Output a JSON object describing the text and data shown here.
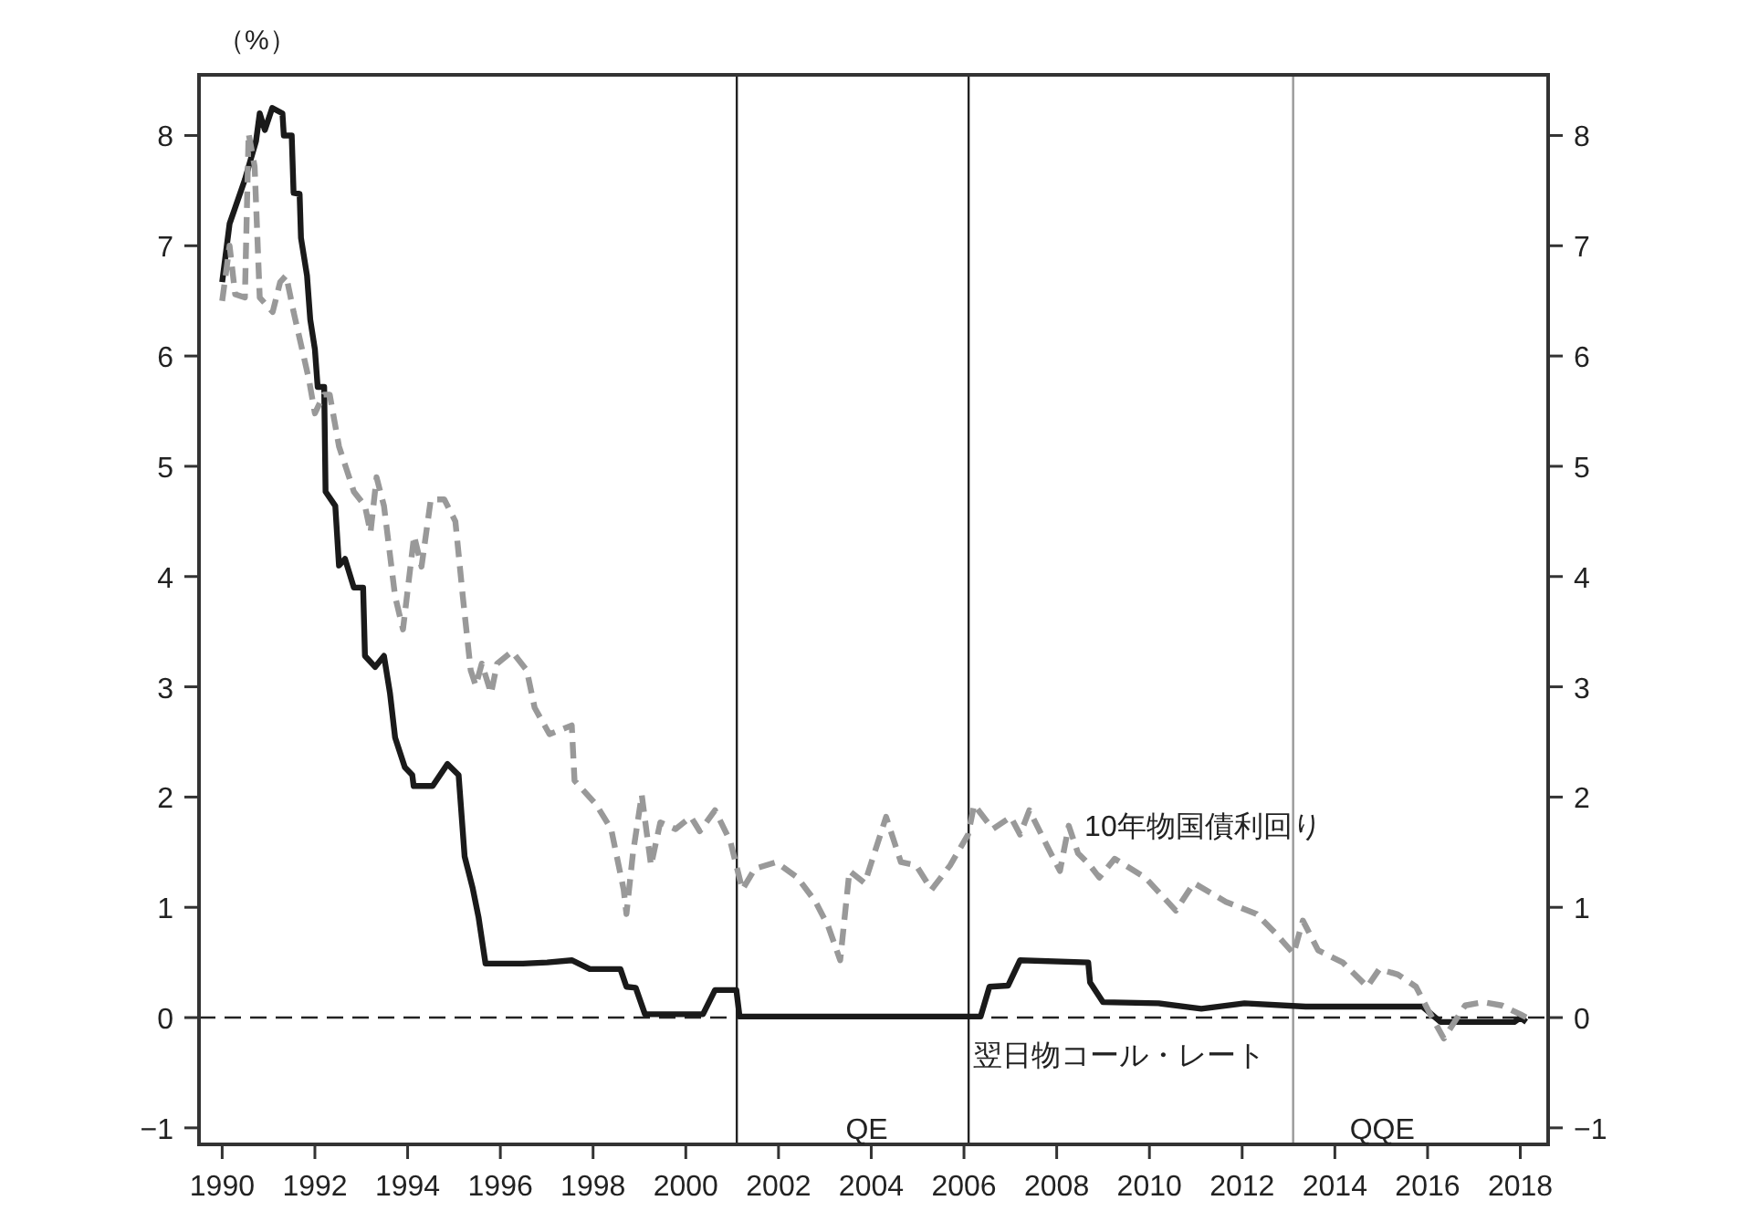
{
  "chart_data": {
    "type": "line",
    "ylabel": "（%）",
    "annotations": [
      "QE",
      "QQE"
    ],
    "series": [
      {
        "name": "翌日物コール・レート",
        "color": "#1a1a1a",
        "line_style": "solid",
        "x": [
          1990.0,
          1990.16,
          1990.49,
          1990.73,
          1990.81,
          1990.92,
          1991.08,
          1991.3,
          1991.33,
          1991.5,
          1991.54,
          1991.67,
          1991.7,
          1991.83,
          1991.9,
          1992.0,
          1992.06,
          1992.2,
          1992.23,
          1992.44,
          1992.52,
          1992.65,
          1992.84,
          1993.04,
          1993.08,
          1993.3,
          1993.49,
          1993.62,
          1993.73,
          1993.94,
          1994.1,
          1994.13,
          1994.54,
          1994.86,
          1995.1,
          1995.23,
          1995.4,
          1995.53,
          1995.68,
          1996.49,
          1997.01,
          1997.54,
          1997.93,
          1998.59,
          1998.72,
          1998.92,
          1999.12,
          2000.37,
          2000.63,
          2001.09,
          2001.16,
          2006.36,
          2006.55,
          2006.95,
          2007.21,
          2008.68,
          2008.72,
          2009.0,
          2010.2,
          2011.12,
          2012.05,
          2013.37,
          2015.89,
          2016.28,
          2017.87,
          2018.0,
          2018.13
        ],
        "values": [
          6.67,
          7.2,
          7.6,
          7.95,
          8.2,
          8.05,
          8.25,
          8.2,
          8.0,
          8.0,
          7.48,
          7.47,
          7.07,
          6.73,
          6.33,
          6.06,
          5.72,
          5.72,
          4.77,
          4.64,
          4.1,
          4.16,
          3.9,
          3.9,
          3.28,
          3.18,
          3.28,
          2.94,
          2.54,
          2.27,
          2.2,
          2.1,
          2.1,
          2.3,
          2.2,
          1.46,
          1.18,
          0.91,
          0.49,
          0.49,
          0.5,
          0.52,
          0.44,
          0.44,
          0.28,
          0.27,
          0.03,
          0.03,
          0.25,
          0.25,
          0.01,
          0.01,
          0.28,
          0.29,
          0.52,
          0.5,
          0.32,
          0.14,
          0.13,
          0.08,
          0.13,
          0.1,
          0.1,
          -0.04,
          -0.04,
          0.0,
          -0.04
        ]
      },
      {
        "name": "10年物国債利回り",
        "color": "#999999",
        "line_style": "dashed",
        "x": [
          1990.0,
          1990.16,
          1990.28,
          1990.49,
          1990.57,
          1990.7,
          1990.81,
          1991.09,
          1991.25,
          1991.38,
          1991.54,
          1991.87,
          1992.0,
          1992.19,
          1992.32,
          1992.52,
          1992.84,
          1993.08,
          1993.2,
          1993.33,
          1993.49,
          1993.73,
          1993.9,
          1994.14,
          1994.3,
          1994.5,
          1994.79,
          1995.03,
          1995.19,
          1995.36,
          1995.47,
          1995.6,
          1995.8,
          1995.93,
          1996.25,
          1996.57,
          1996.74,
          1997.06,
          1997.54,
          1997.6,
          1998.07,
          1998.39,
          1998.66,
          1998.72,
          1998.86,
          1999.05,
          1999.25,
          1999.45,
          1999.78,
          2000.11,
          2000.3,
          2000.63,
          2000.96,
          2001.22,
          2001.49,
          2001.95,
          2002.41,
          2002.8,
          2003.07,
          2003.33,
          2003.53,
          2003.86,
          2004.32,
          2004.64,
          2004.97,
          2005.3,
          2005.7,
          2006.09,
          2006.22,
          2006.62,
          2007.01,
          2007.21,
          2007.41,
          2007.8,
          2008.07,
          2008.26,
          2008.46,
          2008.72,
          2008.92,
          2009.25,
          2009.91,
          2010.57,
          2010.96,
          2011.65,
          2012.31,
          2012.71,
          2013.11,
          2013.31,
          2013.64,
          2014.17,
          2014.7,
          2014.96,
          2015.36,
          2015.75,
          2016.02,
          2016.35,
          2016.81,
          2017.21,
          2017.6,
          2018.0,
          2018.27
        ],
        "values": [
          6.5,
          7.0,
          6.56,
          6.53,
          8.02,
          7.72,
          6.53,
          6.4,
          6.67,
          6.73,
          6.4,
          5.79,
          5.48,
          5.65,
          5.65,
          5.18,
          4.77,
          4.64,
          4.4,
          4.9,
          4.64,
          3.82,
          3.52,
          4.37,
          4.09,
          4.7,
          4.7,
          4.5,
          3.82,
          3.15,
          3.01,
          3.21,
          2.94,
          3.21,
          3.32,
          3.15,
          2.81,
          2.57,
          2.65,
          2.15,
          1.93,
          1.71,
          1.16,
          0.94,
          1.49,
          2.02,
          1.38,
          1.77,
          1.71,
          1.82,
          1.69,
          1.88,
          1.6,
          1.16,
          1.35,
          1.41,
          1.27,
          1.05,
          0.83,
          0.52,
          1.33,
          1.22,
          1.82,
          1.41,
          1.38,
          1.16,
          1.38,
          1.66,
          1.93,
          1.71,
          1.82,
          1.66,
          1.88,
          1.55,
          1.33,
          1.74,
          1.49,
          1.38,
          1.27,
          1.44,
          1.27,
          0.97,
          1.22,
          1.05,
          0.94,
          0.77,
          0.58,
          0.88,
          0.61,
          0.5,
          0.28,
          0.44,
          0.39,
          0.28,
          0.06,
          -0.19,
          0.11,
          0.14,
          0.11,
          0.03,
          -0.03
        ]
      }
    ],
    "xlim": [
      1989.5,
      2018.6
    ],
    "xticks": [
      1990,
      1992,
      1994,
      1996,
      1998,
      2000,
      2002,
      2004,
      2006,
      2008,
      2010,
      2012,
      2014,
      2016,
      2018
    ],
    "ylim": [
      -1.15,
      8.55
    ],
    "yticks": [
      {
        "value": -1,
        "label": "−1"
      },
      0,
      1,
      2,
      3,
      4,
      5,
      6,
      7,
      8
    ],
    "y2lim": [
      -1.15,
      8.55
    ],
    "y2ticks": [
      {
        "value": -1,
        "label": "−1"
      },
      0,
      1,
      2,
      3,
      4,
      5,
      6,
      7,
      8
    ],
    "ref_lines": [
      {
        "axis": "y",
        "value": 0,
        "color": "#222222",
        "line_style": "dashed"
      },
      {
        "axis": "x",
        "value": 2001.1,
        "color": "#222222",
        "line_style": "solid"
      },
      {
        "axis": "x",
        "value": 2006.1,
        "color": "#222222",
        "line_style": "solid"
      },
      {
        "axis": "x",
        "value": 2013.1,
        "color": "#999999",
        "line_style": "solid"
      }
    ]
  }
}
